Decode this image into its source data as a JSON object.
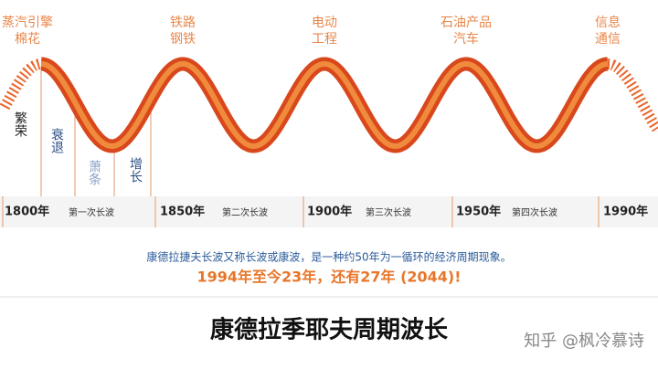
{
  "eras": [
    {
      "lines": [
        "蒸汽引擎",
        "棉花"
      ]
    },
    {
      "lines": [
        "铁路",
        "钢铁"
      ]
    },
    {
      "lines": [
        "电动",
        "工程"
      ]
    },
    {
      "lines": [
        "石油产品",
        "汽车"
      ]
    },
    {
      "lines": [
        "信息",
        "通信"
      ]
    }
  ],
  "phases": [
    "繁荣",
    "衰退",
    "萧条",
    "增长"
  ],
  "axis": {
    "years": [
      "1800年",
      "1850年",
      "1900年",
      "1950年",
      "1990年"
    ],
    "waves": [
      "第一次长波",
      "第二次长波",
      "第三次长波",
      "第四次长波"
    ]
  },
  "caption": "康德拉捷夫长波又称长波或康波，是一种约50年为一循环的经济周期现象。",
  "highlight": "1994年至今23年，还有27年 (2044)!",
  "title": "康德拉季耶夫周期波长",
  "watermark": "知乎 @枫冷慕诗"
}
